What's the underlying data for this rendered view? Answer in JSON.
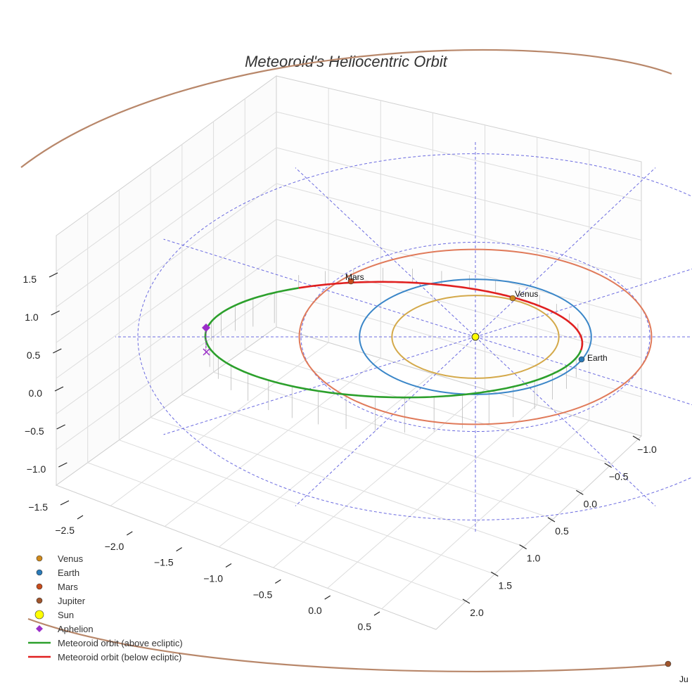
{
  "chart_data": {
    "type": "scatter3d",
    "title": "Meteoroid's Heliocentric Orbit",
    "axes": {
      "x_ticks": [
        "−2.5",
        "−2.0",
        "−1.5",
        "−1.0",
        "−0.5",
        "0.0",
        "0.5"
      ],
      "y_ticks": [
        "−1.0",
        "−0.5",
        "0.0",
        "0.5",
        "1.0",
        "1.5",
        "2.0"
      ],
      "z_ticks": [
        "−1.5",
        "−1.0",
        "−0.5",
        "0.0",
        "0.5",
        "1.0",
        "1.5"
      ],
      "grid": true
    },
    "planets": [
      {
        "name": "Venus",
        "label": "Venus",
        "color": "#d08a1c",
        "orbit_color": "#d4a94a",
        "orbit_radius_au": 0.72
      },
      {
        "name": "Earth",
        "label": "Earth",
        "color": "#2a7ab8",
        "orbit_color": "#3a86c8",
        "orbit_radius_au": 1.0
      },
      {
        "name": "Mars",
        "label": "Mars",
        "color": "#c84c1c",
        "orbit_color": "#e07a5a",
        "orbit_radius_au": 1.52
      },
      {
        "name": "Jupiter",
        "label": "Ju",
        "color": "#a0552c",
        "orbit_color": "#b8876a",
        "orbit_radius_au": 5.2
      }
    ],
    "sun": {
      "name": "Sun",
      "color": "#ffff00"
    },
    "aphelion": {
      "name": "Aphelion",
      "color": "#9b2fc9"
    },
    "meteoroid_orbit": [
      {
        "name": "Meteoroid orbit (above ecliptic)",
        "color": "#2ca02c"
      },
      {
        "name": "Meteoroid orbit (below ecliptic)",
        "color": "#e02020"
      }
    ],
    "legend": {
      "position": "bottom-left",
      "entries": [
        {
          "label": "Venus",
          "marker": "circle",
          "color": "#d08a1c"
        },
        {
          "label": "Earth",
          "marker": "circle",
          "color": "#2a7ab8"
        },
        {
          "label": "Mars",
          "marker": "circle",
          "color": "#c84c1c"
        },
        {
          "label": "Jupiter",
          "marker": "circle",
          "color": "#a0552c"
        },
        {
          "label": "Sun",
          "marker": "circle-large",
          "color": "#ffff00"
        },
        {
          "label": "Aphelion",
          "marker": "diamond",
          "color": "#9b2fc9"
        },
        {
          "label": "Meteoroid orbit (above ecliptic)",
          "marker": "line",
          "color": "#2ca02c"
        },
        {
          "label": "Meteoroid orbit (below ecliptic)",
          "marker": "line",
          "color": "#e02020"
        }
      ]
    }
  }
}
